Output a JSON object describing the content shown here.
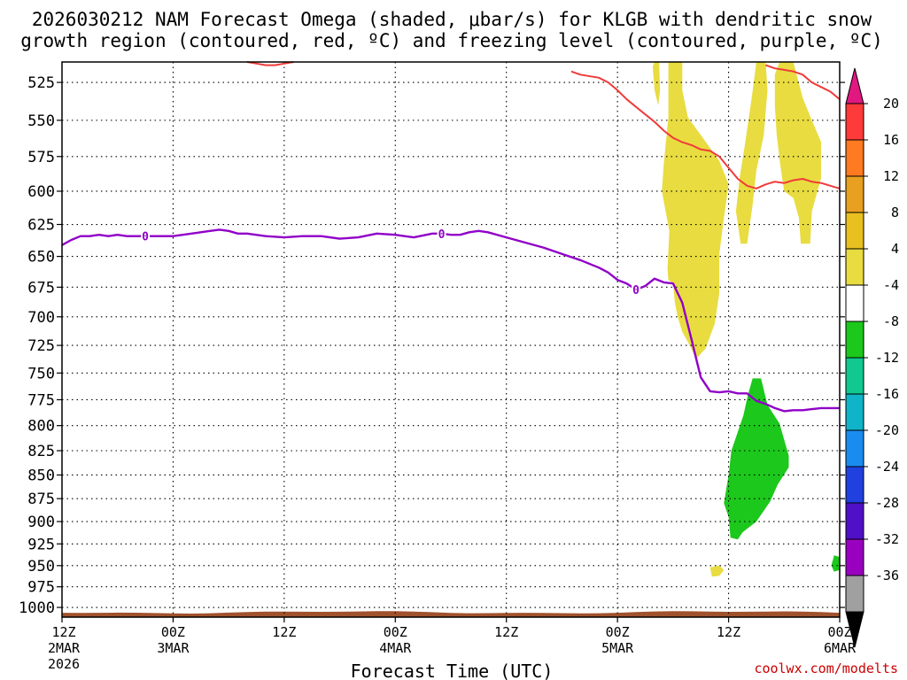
{
  "chart_data": {
    "type": "time-height",
    "title_line1": "2026030212 NAM Forecast Omega (shaded, μbar/s) for KLGB with dendritic snow",
    "title_line2": "growth region (contoured, red, ºC) and freezing level (contoured, purple, ºC)",
    "xlabel": "Forecast Time (UTC)",
    "credit": "coolwx.com/modelts",
    "x_range_hours": [
      0,
      84
    ],
    "y_range_mb": [
      512,
      1012
    ],
    "y_ticks": [
      525,
      550,
      575,
      600,
      625,
      650,
      675,
      700,
      725,
      750,
      775,
      800,
      825,
      850,
      875,
      900,
      925,
      950,
      975,
      1000
    ],
    "y_tick_labels": [
      "525",
      "550",
      "575",
      "600",
      "625",
      "650",
      "675",
      "700",
      "725",
      "750",
      "775",
      "800",
      "825",
      "850",
      "875",
      "900",
      "925",
      "950",
      "975",
      "1000"
    ],
    "x_ticks": [
      {
        "h": 0,
        "l1": "12Z",
        "l2": "2MAR",
        "l3": "2026"
      },
      {
        "h": 12,
        "l1": "00Z",
        "l2": "3MAR",
        "l3": ""
      },
      {
        "h": 24,
        "l1": "12Z",
        "l2": "",
        "l3": ""
      },
      {
        "h": 36,
        "l1": "00Z",
        "l2": "4MAR",
        "l3": ""
      },
      {
        "h": 48,
        "l1": "12Z",
        "l2": "",
        "l3": ""
      },
      {
        "h": 60,
        "l1": "00Z",
        "l2": "5MAR",
        "l3": ""
      },
      {
        "h": 72,
        "l1": "12Z",
        "l2": "",
        "l3": ""
      },
      {
        "h": 84,
        "l1": "00Z",
        "l2": "6MAR",
        "l3": ""
      }
    ],
    "colorbar": {
      "labels": [
        "20",
        "16",
        "12",
        "8",
        "4",
        "-4",
        "-8",
        "-12",
        "-16",
        "-20",
        "-24",
        "-28",
        "-32",
        "-36"
      ],
      "colors": [
        "#ff3a3a",
        "#ff7a20",
        "#e8a020",
        "#e8c020",
        "#e8dc40",
        "#ffffff",
        "#1cc81c",
        "#10c890",
        "#10b4c8",
        "#1a8cf0",
        "#2040e0",
        "#5010c8",
        "#9a00c0",
        "#a0a0a0"
      ],
      "top_arrow": "#e01880",
      "bottom_arrow": "#000000"
    },
    "series": [
      {
        "name": "freezing level (0ºC)",
        "color": "#9000c8",
        "contour_label": "0",
        "label_hours": [
          9,
          41,
          62
        ],
        "points": [
          [
            0,
            641
          ],
          [
            1,
            637
          ],
          [
            2,
            634
          ],
          [
            3,
            634
          ],
          [
            4,
            633
          ],
          [
            5,
            634
          ],
          [
            6,
            633
          ],
          [
            7,
            634
          ],
          [
            8,
            634
          ],
          [
            9,
            634
          ],
          [
            10,
            634
          ],
          [
            12,
            634
          ],
          [
            14,
            632
          ],
          [
            16,
            630
          ],
          [
            17,
            629
          ],
          [
            18,
            630
          ],
          [
            19,
            632
          ],
          [
            20,
            632
          ],
          [
            22,
            634
          ],
          [
            24,
            635
          ],
          [
            26,
            634
          ],
          [
            28,
            634
          ],
          [
            30,
            636
          ],
          [
            32,
            635
          ],
          [
            34,
            632
          ],
          [
            36,
            633
          ],
          [
            37,
            634
          ],
          [
            38,
            635
          ],
          [
            40,
            632
          ],
          [
            41,
            632
          ],
          [
            42,
            633
          ],
          [
            43,
            633
          ],
          [
            44,
            631
          ],
          [
            45,
            630
          ],
          [
            46,
            631
          ],
          [
            48,
            635
          ],
          [
            50,
            639
          ],
          [
            52,
            643
          ],
          [
            54,
            648
          ],
          [
            56,
            653
          ],
          [
            58,
            659
          ],
          [
            59,
            663
          ],
          [
            60,
            669
          ],
          [
            61,
            672
          ],
          [
            62,
            677
          ],
          [
            63,
            674
          ],
          [
            64,
            668
          ],
          [
            65,
            671
          ],
          [
            66,
            672
          ],
          [
            67,
            688
          ],
          [
            68,
            720
          ],
          [
            68.5,
            737
          ],
          [
            69,
            754
          ],
          [
            70,
            767
          ],
          [
            71,
            768
          ],
          [
            72,
            767
          ],
          [
            73,
            769
          ],
          [
            74,
            769
          ],
          [
            75,
            776
          ],
          [
            76,
            779
          ],
          [
            77,
            783
          ],
          [
            78,
            786
          ],
          [
            79,
            785
          ],
          [
            80,
            785
          ],
          [
            81,
            784
          ],
          [
            82,
            783
          ],
          [
            84,
            783
          ]
        ]
      },
      {
        "name": "dendritic growth region (-12ºC)",
        "color": "#f03a3a",
        "points": [
          [
            55,
            518
          ],
          [
            56,
            520
          ],
          [
            58,
            522
          ],
          [
            59,
            525
          ],
          [
            60,
            530
          ],
          [
            61,
            536
          ],
          [
            62,
            541
          ],
          [
            63,
            546
          ],
          [
            64,
            551
          ],
          [
            65,
            557
          ],
          [
            66,
            562
          ],
          [
            67,
            565
          ],
          [
            68,
            567
          ],
          [
            69,
            570
          ],
          [
            70,
            571
          ],
          [
            71,
            575
          ],
          [
            72,
            583
          ],
          [
            73,
            591
          ],
          [
            74,
            596
          ],
          [
            75,
            598
          ],
          [
            76,
            595
          ],
          [
            77,
            593
          ],
          [
            78,
            594
          ],
          [
            79,
            592
          ],
          [
            80,
            591
          ],
          [
            81,
            593
          ],
          [
            82,
            594
          ],
          [
            83,
            596
          ],
          [
            84,
            598
          ]
        ]
      },
      {
        "name": "dendritic growth region top",
        "color": "#f03a3a",
        "points": [
          [
            76,
            514
          ],
          [
            77,
            516
          ],
          [
            78,
            517
          ],
          [
            79,
            518
          ],
          [
            80,
            520
          ],
          [
            81,
            525
          ],
          [
            82,
            528
          ],
          [
            83,
            531
          ],
          [
            84,
            536
          ]
        ]
      },
      {
        "name": "dendritic growth region top (early)",
        "color": "#f03a3a",
        "points": [
          [
            20,
            512
          ],
          [
            21,
            513
          ],
          [
            22,
            514
          ],
          [
            23,
            514
          ],
          [
            24,
            513
          ],
          [
            25,
            512
          ]
        ]
      }
    ],
    "shaded_regions": [
      {
        "name": "omega 4 to 8 (a)",
        "color": "#e8dc40",
        "polygon": [
          [
            64,
            512
          ],
          [
            64.5,
            512
          ],
          [
            64.6,
            530
          ],
          [
            64.4,
            540
          ],
          [
            64,
            530
          ],
          [
            63.8,
            515
          ]
        ]
      },
      {
        "name": "omega 4 to 8 (b)",
        "color": "#e8dc40",
        "polygon": [
          [
            65.5,
            512
          ],
          [
            67,
            512
          ],
          [
            67,
            530
          ],
          [
            67.6,
            548
          ],
          [
            69,
            560
          ],
          [
            71,
            578
          ],
          [
            72,
            595
          ],
          [
            71.5,
            620
          ],
          [
            71,
            648
          ],
          [
            71,
            680
          ],
          [
            70.5,
            706
          ],
          [
            69.5,
            728
          ],
          [
            68.5,
            737
          ],
          [
            67.8,
            725
          ],
          [
            67,
            713
          ],
          [
            66.5,
            700
          ],
          [
            66.2,
            688
          ],
          [
            66,
            672
          ],
          [
            65.5,
            669
          ],
          [
            65.4,
            660
          ],
          [
            65.5,
            645
          ],
          [
            65.6,
            630
          ],
          [
            65.2,
            615
          ],
          [
            64.8,
            600
          ],
          [
            65,
            580
          ],
          [
            65.5,
            548
          ]
        ]
      },
      {
        "name": "omega 4 to 8 (c)",
        "color": "#e8dc40",
        "polygon": [
          [
            75,
            512
          ],
          [
            76,
            512
          ],
          [
            76.2,
            530
          ],
          [
            75.8,
            560
          ],
          [
            75,
            585
          ],
          [
            74.6,
            610
          ],
          [
            74,
            640
          ],
          [
            73.3,
            640
          ],
          [
            72.8,
            615
          ],
          [
            73.2,
            590
          ],
          [
            73.8,
            565
          ],
          [
            74.5,
            535
          ]
        ]
      },
      {
        "name": "omega 4 to 8 (d)",
        "color": "#e8dc40",
        "polygon": [
          [
            77.5,
            512
          ],
          [
            79,
            512
          ],
          [
            80,
            535
          ],
          [
            81,
            550
          ],
          [
            82,
            565
          ],
          [
            82,
            590
          ],
          [
            81,
            615
          ],
          [
            80.8,
            640
          ],
          [
            79.8,
            640
          ],
          [
            79.6,
            620
          ],
          [
            79,
            605
          ],
          [
            78,
            600
          ],
          [
            77.6,
            582
          ],
          [
            77.2,
            560
          ],
          [
            77,
            540
          ],
          [
            77,
            520
          ]
        ]
      },
      {
        "name": "omega 4 to 8 (e)",
        "color": "#e8dc40",
        "polygon": [
          [
            70,
            952
          ],
          [
            71,
            950
          ],
          [
            71.5,
            955
          ],
          [
            71,
            962
          ],
          [
            70.2,
            963
          ]
        ]
      },
      {
        "name": "omega -4 to -8 (a)",
        "color": "#1cc81c",
        "polygon": [
          [
            74.6,
            755
          ],
          [
            75.5,
            755
          ],
          [
            76.2,
            780
          ],
          [
            77.5,
            798
          ],
          [
            78.5,
            830
          ],
          [
            78.5,
            842
          ],
          [
            77.3,
            860
          ],
          [
            76.5,
            878
          ],
          [
            75,
            900
          ],
          [
            73.5,
            912
          ],
          [
            73,
            920
          ],
          [
            72.2,
            918
          ],
          [
            72,
            895
          ],
          [
            71.5,
            880
          ],
          [
            72,
            850
          ],
          [
            72.3,
            825
          ],
          [
            73,
            806
          ],
          [
            73.6,
            790
          ],
          [
            74.1,
            770
          ]
        ]
      },
      {
        "name": "omega -4 to -8 (b)",
        "color": "#1cc81c",
        "polygon": [
          [
            83.4,
            938
          ],
          [
            84,
            940
          ],
          [
            84,
            955
          ],
          [
            83.4,
            957
          ],
          [
            83.1,
            950
          ]
        ]
      }
    ],
    "surface_color": "#a0522d"
  }
}
